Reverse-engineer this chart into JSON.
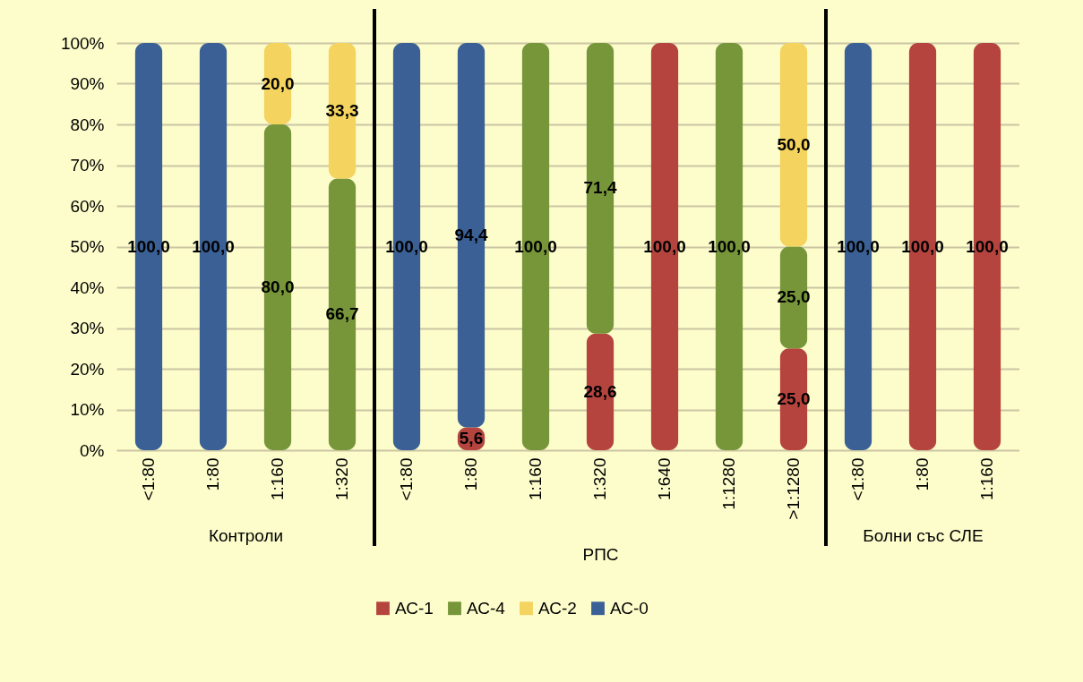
{
  "chart_data": [
    {
      "type": "bar",
      "stacked": true,
      "xlabel": "Контроли",
      "categories": [
        "<1:80",
        "1:80",
        "1:160",
        "1:320"
      ],
      "ylim": [
        0,
        100
      ],
      "yticks": [
        {
          "value": 0,
          "label": "0%"
        },
        {
          "value": 10,
          "label": "10%"
        },
        {
          "value": 20,
          "label": "20%"
        },
        {
          "value": 30,
          "label": "30%"
        },
        {
          "value": 40,
          "label": "40%"
        },
        {
          "value": 50,
          "label": "50%"
        },
        {
          "value": 60,
          "label": "60%"
        },
        {
          "value": 70,
          "label": "70%"
        },
        {
          "value": 80,
          "label": "80%"
        },
        {
          "value": 90,
          "label": "90%"
        },
        {
          "value": 100,
          "label": "100%"
        }
      ],
      "grid": "y",
      "series": [
        {
          "color": "#b5443f",
          "values": [
            null,
            null,
            null,
            null
          ],
          "value_labels": [
            null,
            null,
            null,
            null
          ]
        },
        {
          "color": "#77963a",
          "values": [
            null,
            null,
            80,
            66.7
          ],
          "value_labels": [
            null,
            null,
            "80,0",
            "66,7"
          ]
        },
        {
          "color": "#f4d35e",
          "values": [
            null,
            null,
            20,
            33.3
          ],
          "value_labels": [
            null,
            null,
            "20,0",
            "33,3"
          ]
        },
        {
          "color": "#3a6096",
          "values": [
            100,
            100,
            null,
            null
          ],
          "value_labels": [
            "100,0",
            "100,0",
            null,
            null
          ]
        }
      ]
    },
    {
      "type": "bar",
      "stacked": true,
      "xlabel": "РПС",
      "categories": [
        "<1:80",
        "1:80",
        "1:160",
        "1:320",
        "1:640",
        "1:1280",
        ">1:1280"
      ],
      "ylim": [
        0,
        100
      ],
      "yticks": [
        0,
        10,
        20,
        30,
        40,
        50,
        60,
        70,
        80,
        90,
        100
      ],
      "grid": "y",
      "tick_labels": "x",
      "legend": "bottom",
      "series": [
        {
          "name": "АС-1",
          "color": "#b5443f",
          "values": [
            null,
            5.6,
            null,
            28.6,
            100,
            null,
            25
          ],
          "value_labels": [
            null,
            "5,6",
            null,
            "28,6",
            "100,0",
            null,
            "25,0"
          ]
        },
        {
          "name": "АС-4",
          "color": "#77963a",
          "values": [
            null,
            null,
            100,
            71.4,
            null,
            100,
            25
          ],
          "value_labels": [
            null,
            null,
            "100,0",
            "71,4",
            null,
            "100,0",
            "25,0"
          ]
        },
        {
          "name": "АС-2",
          "color": "#f4d35e",
          "values": [
            null,
            null,
            null,
            null,
            null,
            null,
            50
          ],
          "value_labels": [
            null,
            null,
            null,
            null,
            null,
            null,
            "50,0"
          ]
        },
        {
          "name": "АС-0",
          "color": "#3a6096",
          "values": [
            100,
            94.4,
            null,
            null,
            null,
            null,
            null
          ],
          "value_labels": [
            "100,0",
            "94,4",
            null,
            null,
            null,
            null,
            null
          ]
        }
      ]
    },
    {
      "type": "bar",
      "stacked": true,
      "xlabel": "Болни със СЛЕ",
      "categories": [
        "<1:80",
        "1:80",
        "1:160"
      ],
      "ylim": [
        0,
        100
      ],
      "yticks": [
        0,
        10,
        20,
        30,
        40,
        50,
        60,
        70,
        80,
        90,
        100
      ],
      "grid": "y",
      "tick_labels": "x",
      "series": [
        {
          "color": "#b5443f",
          "values": [
            null,
            100,
            100
          ],
          "value_labels": [
            null,
            "100,0",
            "100,0"
          ]
        },
        {
          "color": "#77963a",
          "values": [
            null,
            null,
            null
          ],
          "value_labels": [
            null,
            null,
            null
          ]
        },
        {
          "color": "#f4d35e",
          "values": [
            null,
            null,
            null
          ],
          "value_labels": [
            null,
            null,
            null
          ]
        },
        {
          "color": "#3a6096",
          "values": [
            100,
            null,
            null
          ],
          "value_labels": [
            "100,0",
            null,
            null
          ]
        }
      ]
    }
  ]
}
